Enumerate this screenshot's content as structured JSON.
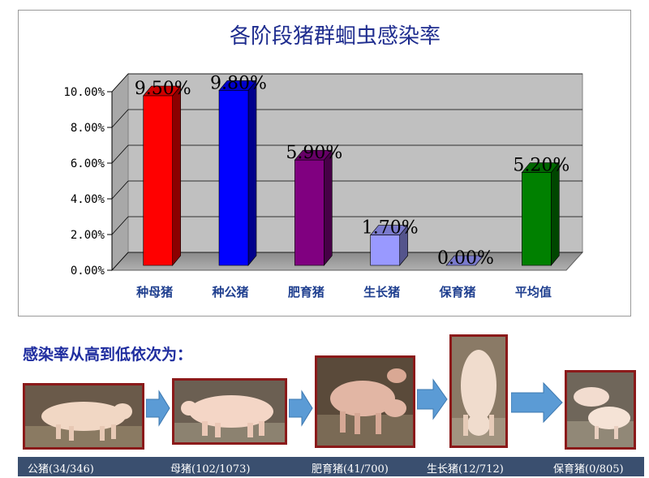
{
  "chart_data": {
    "type": "bar",
    "title": "各阶段猪群蛔虫感染率",
    "categories": [
      "种母猪",
      "种公猪",
      "肥育猪",
      "生长猪",
      "保育猪",
      "平均值"
    ],
    "values": [
      9.5,
      9.8,
      5.9,
      1.7,
      0.0,
      5.2
    ],
    "data_labels": [
      "9.50%",
      "9.80%",
      "5.90%",
      "1.70%",
      "0.00%",
      "5.20%"
    ],
    "colors": [
      "#ff0000",
      "#0000ff",
      "#800080",
      "#9999ff",
      "#9999ff",
      "#008000"
    ],
    "ylim": [
      0,
      10
    ],
    "yticks": [
      0,
      2,
      4,
      6,
      8,
      10
    ],
    "ytick_labels": [
      "0.00%",
      "2.00%",
      "4.00%",
      "6.00%",
      "8.00%",
      "10.00%"
    ],
    "grid": true,
    "xlabel": "",
    "ylabel": ""
  },
  "order": {
    "heading": "感染率从高到低依次为：",
    "items": [
      {
        "caption": "公猪(34/346)",
        "photo": "boar-photo"
      },
      {
        "caption": "母猪(102/1073)",
        "photo": "sow-photo"
      },
      {
        "caption": "肥育猪(41/700)",
        "photo": "finishing-pig-photo"
      },
      {
        "caption": "生长猪(12/712)",
        "photo": "growing-pig-photo"
      },
      {
        "caption": "保育猪(0/805)",
        "photo": "nursery-pig-photo"
      }
    ],
    "border_color": "#8b1a1a",
    "arrow_color": "#5b9bd5",
    "caption_bar_color": "#3a4f6f"
  }
}
